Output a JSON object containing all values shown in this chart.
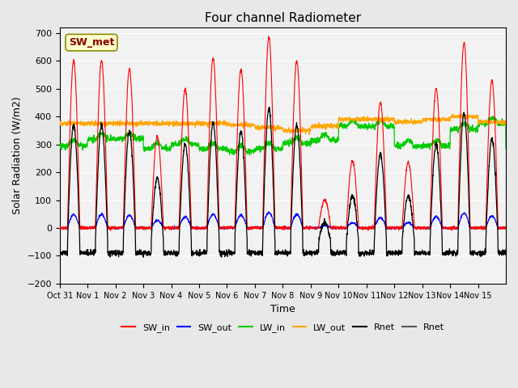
{
  "title": "Four channel Radiometer",
  "xlabel": "Time",
  "ylabel": "Solar Radiation (W/m2)",
  "ylim": [
    -200,
    720
  ],
  "yticks": [
    -200,
    -100,
    0,
    100,
    200,
    300,
    400,
    500,
    600,
    700
  ],
  "x_labels": [
    "Oct 31",
    "Nov 1",
    "Nov 2",
    "Nov 3",
    "Nov 4",
    "Nov 5",
    "Nov 6",
    "Nov 7",
    "Nov 8",
    "Nov 9",
    "Nov 10",
    "Nov 11",
    "Nov 12",
    "Nov 13",
    "Nov 14",
    "Nov 15"
  ],
  "annotation_text": "SW_met",
  "annotation_color": "#8B0000",
  "annotation_bg": "#FFFFCC",
  "colors": {
    "SW_in": "#FF0000",
    "SW_out": "#0000FF",
    "LW_in": "#00CC00",
    "LW_out": "#FFA500",
    "Rnet_black": "#000000",
    "Rnet_dark": "#555555"
  },
  "legend_entries": [
    "SW_in",
    "SW_out",
    "LW_in",
    "LW_out",
    "Rnet",
    "Rnet"
  ],
  "legend_colors": [
    "#FF0000",
    "#0000FF",
    "#00CC00",
    "#FFA500",
    "#000000",
    "#555555"
  ],
  "bg_color": "#E8E8E8",
  "plot_bg": "#F2F2F2"
}
